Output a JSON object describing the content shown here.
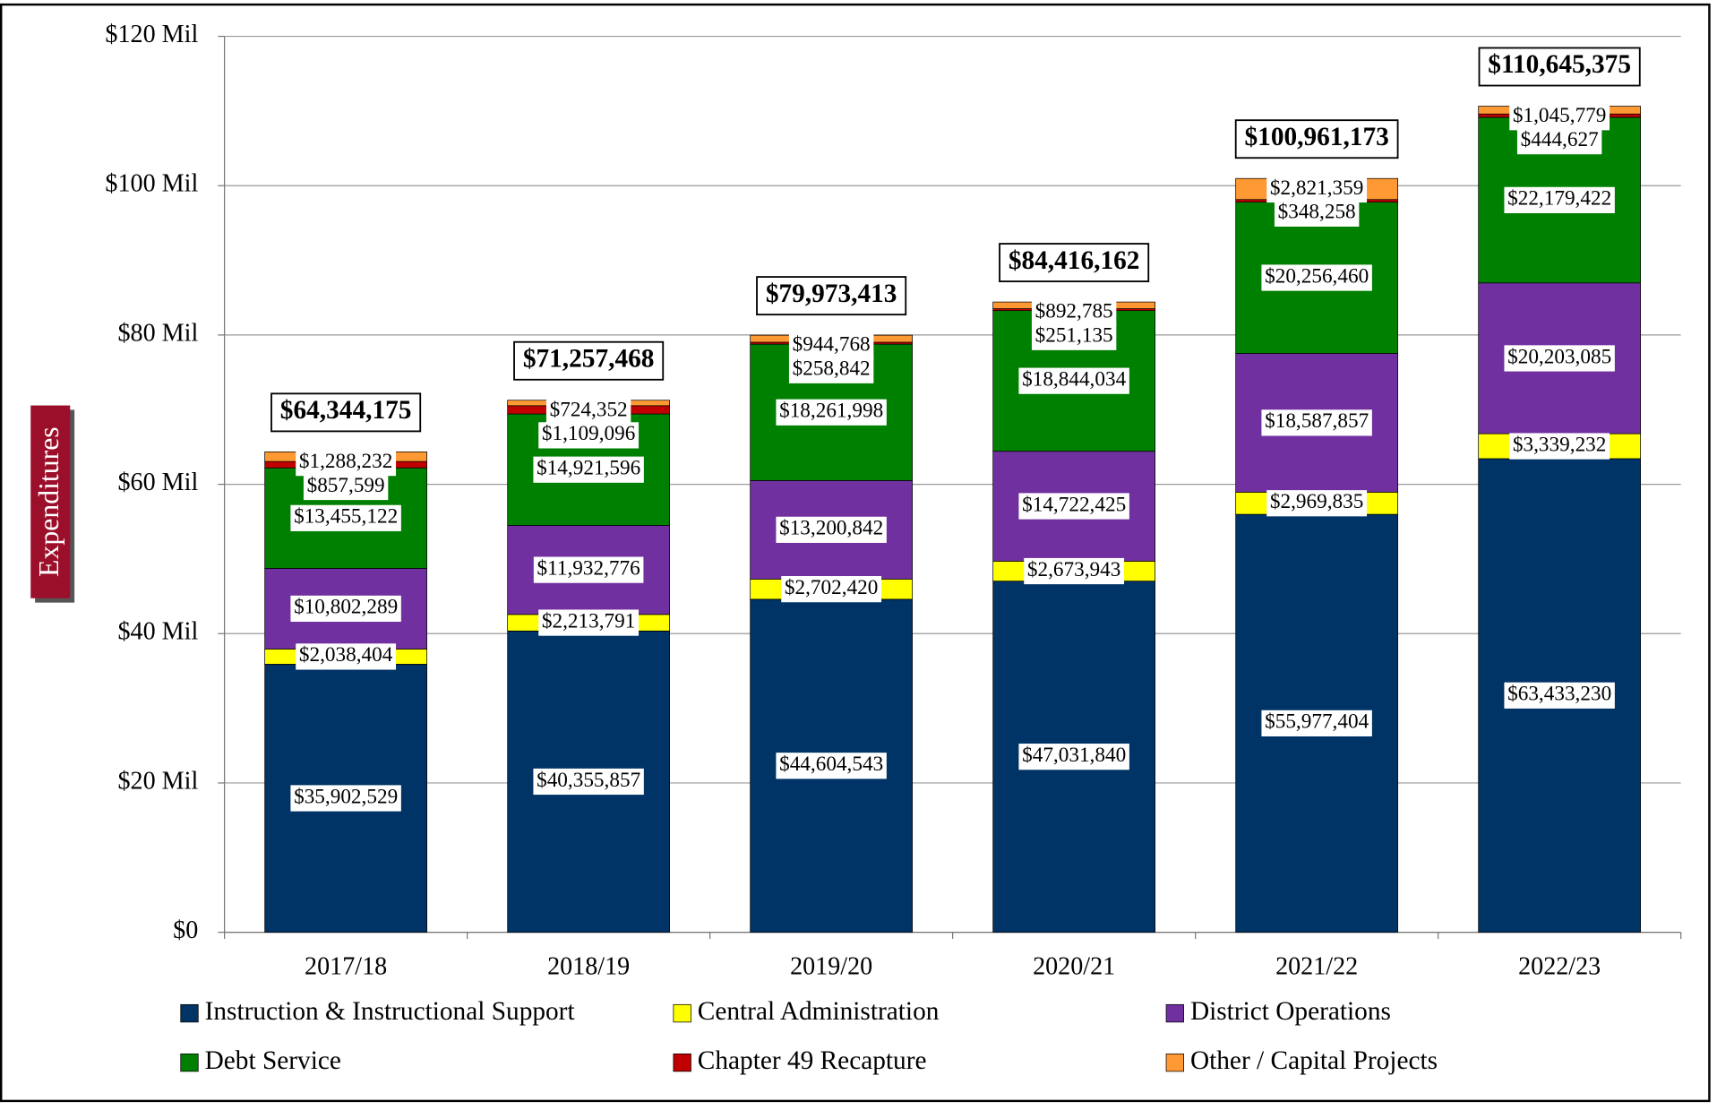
{
  "chart_data": {
    "type": "stacked-bar",
    "y_label": "Expenditures",
    "categories": [
      "2017/18",
      "2018/19",
      "2019/20",
      "2020/21",
      "2021/22",
      "2022/23"
    ],
    "series": [
      {
        "name": "Instruction & Instructional Support",
        "color": "#003366",
        "values": [
          35902529,
          40355857,
          44604543,
          47031840,
          55977404,
          63433230
        ],
        "value_labels": [
          "$35,902,529",
          "$40,355,857",
          "$44,604,543",
          "$47,031,840",
          "$55,977,404",
          "$63,433,230"
        ]
      },
      {
        "name": "Central Administration",
        "color": "#ffff00",
        "values": [
          2038404,
          2213791,
          2702420,
          2673943,
          2969835,
          3339232
        ],
        "value_labels": [
          "$2,038,404",
          "$2,213,791",
          "$2,702,420",
          "$2,673,943",
          "$2,969,835",
          "$3,339,232"
        ]
      },
      {
        "name": "District Operations",
        "color": "#7030a0",
        "values": [
          10802289,
          11932776,
          13200842,
          14722425,
          18587857,
          20203085
        ],
        "value_labels": [
          "$10,802,289",
          "$11,932,776",
          "$13,200,842",
          "$14,722,425",
          "$18,587,857",
          "$20,203,085"
        ]
      },
      {
        "name": "Debt Service",
        "color": "#008000",
        "values": [
          13455122,
          14921596,
          18261998,
          18844034,
          20256460,
          22179422
        ],
        "value_labels": [
          "$13,455,122",
          "$14,921,596",
          "$18,261,998",
          "$18,844,034",
          "$20,256,460",
          "$22,179,422"
        ]
      },
      {
        "name": "Chapter 49 Recapture",
        "color": "#c00000",
        "values": [
          857599,
          1109096,
          258842,
          251135,
          348258,
          444627
        ],
        "value_labels": [
          "$857,599",
          "$1,109,096",
          "$258,842",
          "$251,135",
          "$348,258",
          "$444,627"
        ]
      },
      {
        "name": "Other / Capital Projects",
        "color": "#ff9933",
        "values": [
          1288232,
          724352,
          944768,
          892785,
          2821359,
          1045779
        ],
        "value_labels": [
          "$1,288,232",
          "$724,352",
          "$944,768",
          "$892,785",
          "$2,821,359",
          "$1,045,779"
        ]
      }
    ],
    "totals": [
      64344175,
      71257468,
      79973413,
      84416162,
      100961173,
      110645375
    ],
    "total_labels": [
      "$64,344,175",
      "$71,257,468",
      "$79,973,413",
      "$84,416,162",
      "$100,961,173",
      "$110,645,375"
    ],
    "ylim": [
      0,
      120000000
    ],
    "yticks": [
      {
        "value": 0,
        "label": "$0"
      },
      {
        "value": 20000000,
        "label": "$20 Mil"
      },
      {
        "value": 40000000,
        "label": "$40 Mil"
      },
      {
        "value": 60000000,
        "label": "$60 Mil"
      },
      {
        "value": 80000000,
        "label": "$80 Mil"
      },
      {
        "value": 100000000,
        "label": "$100 Mil"
      },
      {
        "value": 120000000,
        "label": "$120 Mil"
      }
    ],
    "grid": true,
    "legend": "bottom"
  }
}
